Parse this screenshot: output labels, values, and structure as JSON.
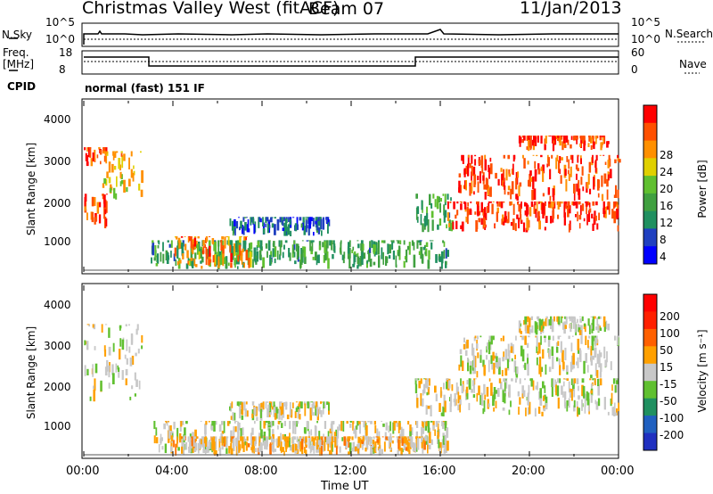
{
  "header": {
    "title": "Christmas Valley West (fitACF)",
    "beam": "Beam 07",
    "date": "11/Jan/2013"
  },
  "params_panel": {
    "nsky_label": "N.Sky",
    "nsky_ticks": [
      "10^5",
      "10^0"
    ],
    "nsearch_label": "N.Search",
    "nsearch_ticks": [
      "10^5",
      "10^0"
    ],
    "freq_label": "Freq.",
    "freq_unit": "[MHz]",
    "freq_ticks": [
      "18",
      "8"
    ],
    "nave_label": "Nave",
    "nave_ticks": [
      "60",
      "0"
    ],
    "cpid_label": "CPID",
    "cpid_value": "normal (fast) 151 IF"
  },
  "chart_data": [
    {
      "type": "heatmap",
      "name": "power",
      "ylabel": "Slant Range [km]",
      "ylim": [
        180,
        4600
      ],
      "yticks": [
        "4000",
        "3000",
        "2000",
        "1000"
      ],
      "colorbar_label": "Power [dB]",
      "colorbar_ticks": [
        "28",
        "24",
        "20",
        "16",
        "12",
        "8",
        "4"
      ],
      "colorbar_colors": [
        "#0000ff",
        "#2040c0",
        "#209060",
        "#40a040",
        "#60c030",
        "#e0d000",
        "#ff9000",
        "#ff5000",
        "#ff0000"
      ],
      "regions": [
        {
          "t": [
            0.0,
            1.0
          ],
          "r": [
            1300,
            2200
          ],
          "level": 0.9
        },
        {
          "t": [
            0.0,
            1.0
          ],
          "r": [
            2900,
            3400
          ],
          "level": 0.85
        },
        {
          "t": [
            0.8,
            2.6
          ],
          "r": [
            2000,
            3300
          ],
          "level": 0.65
        },
        {
          "t": [
            3.0,
            16.3
          ],
          "r": [
            250,
            1000
          ],
          "level": 0.35
        },
        {
          "t": [
            4.0,
            7.5
          ],
          "r": [
            250,
            1100
          ],
          "level": 0.8
        },
        {
          "t": [
            6.5,
            11.0
          ],
          "r": [
            1100,
            1600
          ],
          "level": 0.15
        },
        {
          "t": [
            14.8,
            16.5
          ],
          "r": [
            1200,
            2200
          ],
          "level": 0.35
        },
        {
          "t": [
            16.3,
            24.0
          ],
          "r": [
            1200,
            2000
          ],
          "level": 0.95
        },
        {
          "t": [
            16.8,
            24.0
          ],
          "r": [
            2000,
            3200
          ],
          "level": 0.9
        },
        {
          "t": [
            19.5,
            23.5
          ],
          "r": [
            3300,
            3700
          ],
          "level": 0.9
        }
      ]
    },
    {
      "type": "heatmap",
      "name": "velocity",
      "ylabel": "Slant Range [km]",
      "xlabel": "Time UT",
      "ylim": [
        180,
        4600
      ],
      "yticks": [
        "4000",
        "3000",
        "2000",
        "1000"
      ],
      "xticks": [
        "00:00",
        "04:00",
        "08:00",
        "12:00",
        "16:00",
        "20:00",
        "00:00"
      ],
      "xlim": [
        0,
        24
      ],
      "colorbar_label": "Velocity [m s⁻¹]",
      "colorbar_ticks": [
        "200",
        "100",
        "50",
        "15",
        "-15",
        "-50",
        "-100",
        "-200"
      ],
      "colorbar_colors": [
        "#2030c0",
        "#2060c0",
        "#209060",
        "#60c030",
        "#c8c8c8",
        "#ffa000",
        "#ff6000",
        "#ff2000",
        "#ff0000"
      ],
      "regions": [
        {
          "t": [
            0.0,
            2.6
          ],
          "r": [
            1600,
            3600
          ],
          "level": 0.5
        },
        {
          "t": [
            3.0,
            16.3
          ],
          "r": [
            250,
            1100
          ],
          "level": 0.5
        },
        {
          "t": [
            4.0,
            15.5
          ],
          "r": [
            200,
            700
          ],
          "level": 0.62
        },
        {
          "t": [
            6.5,
            11.0
          ],
          "r": [
            1100,
            1600
          ],
          "level": 0.5
        },
        {
          "t": [
            14.8,
            24.0
          ],
          "r": [
            1200,
            2200
          ],
          "level": 0.5
        },
        {
          "t": [
            16.8,
            24.0
          ],
          "r": [
            2200,
            3300
          ],
          "level": 0.5
        },
        {
          "t": [
            19.5,
            23.5
          ],
          "r": [
            3300,
            3800
          ],
          "level": 0.5
        }
      ]
    }
  ]
}
